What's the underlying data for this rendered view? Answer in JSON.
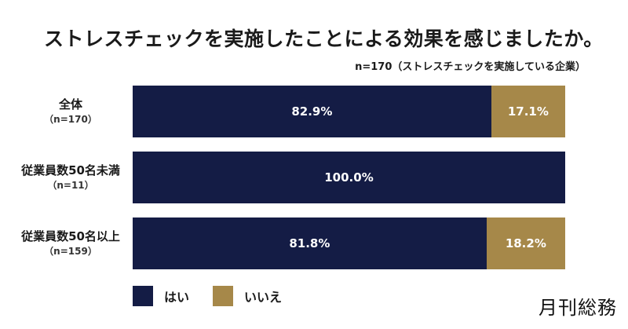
{
  "title": "ストレスチェックを実施したことによる効果を感じましたか。",
  "note": "n=170（ストレスチェックを実施している企業）",
  "brand": "月刊総務",
  "colors": {
    "yes": "#141c45",
    "no": "#a68849"
  },
  "chart_data": {
    "type": "bar",
    "orientation": "horizontal",
    "stacked": true,
    "title": "ストレスチェックを実施したことによる効果を感じましたか。",
    "categories": [
      {
        "name": "全体",
        "n": "（n=170）"
      },
      {
        "name": "従業員数50名未満",
        "n": "（n=11）"
      },
      {
        "name": "従業員数50名以上",
        "n": "（n=159）"
      }
    ],
    "series": [
      {
        "name": "はい",
        "color": "#141c45",
        "values": [
          82.9,
          100.0,
          81.8
        ],
        "labels": [
          "82.9%",
          "100.0%",
          "81.8%"
        ]
      },
      {
        "name": "いいえ",
        "color": "#a68849",
        "values": [
          17.1,
          0.0,
          18.2
        ],
        "labels": [
          "17.1%",
          "",
          "18.2%"
        ]
      }
    ],
    "xlim": [
      0,
      100
    ],
    "legend": "bottom-left",
    "grid": false
  }
}
